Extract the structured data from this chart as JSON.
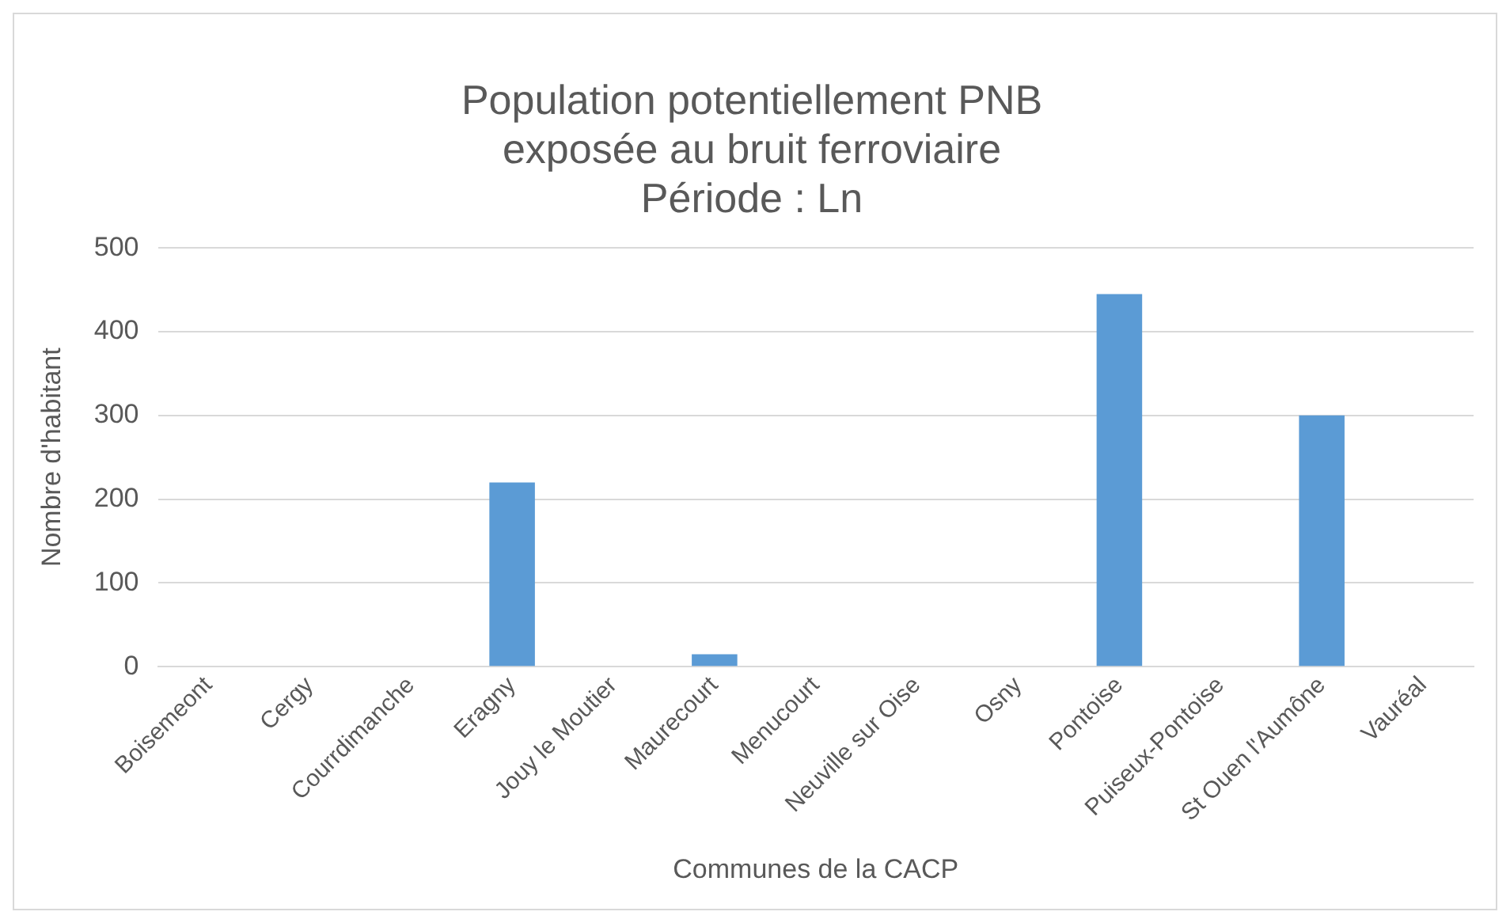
{
  "chart_data": {
    "type": "bar",
    "title": [
      "Population potentiellement PNB",
      "exposée au bruit ferroviaire",
      "Période : Ln"
    ],
    "xlabel": "Communes de la CACP",
    "ylabel": "Nombre d'habitant",
    "categories": [
      "Boisemeont",
      "Cergy",
      "Courrdimanche",
      "Eragny",
      "Jouy le Moutier",
      "Maurecourt",
      "Menucourt",
      "Neuville sur Oise",
      "Osny",
      "Pontoise",
      "Puiseux-Pontoise",
      "St Ouen l'Aumône",
      "Vauréal"
    ],
    "values": [
      0,
      0,
      0,
      220,
      0,
      15,
      0,
      0,
      0,
      445,
      0,
      300,
      0
    ],
    "color": "#5b9bd5",
    "ylim": [
      0,
      500
    ],
    "yticks": [
      0,
      100,
      200,
      300,
      400,
      500
    ],
    "grid": "y"
  }
}
